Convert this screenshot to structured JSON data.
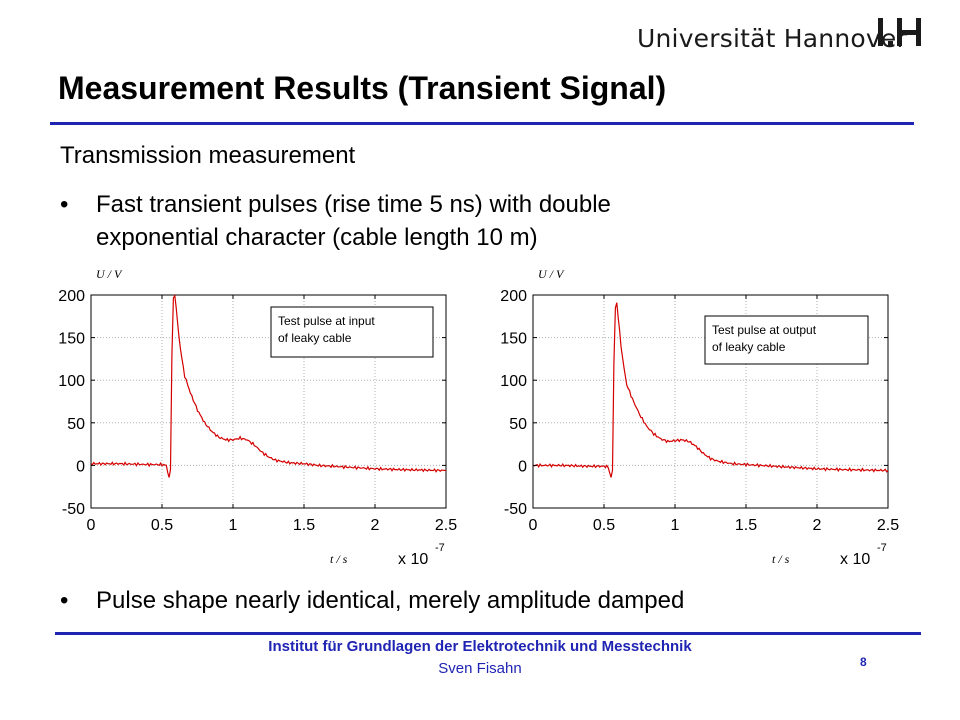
{
  "header": {
    "university": "Universität Hannover",
    "logo_text": "I.H"
  },
  "slide": {
    "title": "Measurement Results (Transient Signal)",
    "subtitle": "Transmission measurement",
    "bullet1_line1": "Fast transient pulses (rise time 5 ns) with double",
    "bullet1_line2": "exponential character (cable length 10 m)",
    "bullet2": "Pulse shape nearly identical, merely amplitude damped",
    "bullet_symbol": "•"
  },
  "footer": {
    "institute": "Institut für Grundlagen der Elektrotechnik und Messtechnik",
    "author": "Sven Fisahn",
    "page": "8"
  },
  "colors": {
    "accent": "#1f24b3",
    "trace": "#d40000",
    "grid": "#b0b0b0"
  },
  "chart_data": [
    {
      "type": "line",
      "title": "",
      "legend_text_line1": "Test pulse at input",
      "legend_text_line2": "of leaky cable",
      "ylabel": "U / V",
      "xlabel": "t / s",
      "x_multiplier": "x 10",
      "x_multiplier_exp": "-7",
      "xlim": [
        0,
        2.5
      ],
      "ylim": [
        -50,
        200
      ],
      "x_ticks": [
        "0",
        "0.5",
        "1",
        "1.5",
        "2",
        "2.5"
      ],
      "y_ticks": [
        "200",
        "150",
        "100",
        "50",
        "0",
        "-50"
      ],
      "grid": true,
      "series": [
        {
          "x": [
            0,
            0.2,
            0.4,
            0.5,
            0.53,
            0.55,
            0.56,
            0.57,
            0.58,
            0.59,
            0.6,
            0.62,
            0.64,
            0.66,
            0.7,
            0.75,
            0.8,
            0.85,
            0.9,
            0.95,
            1.0,
            1.05,
            1.1,
            1.15,
            1.2,
            1.25,
            1.3,
            1.4,
            1.5,
            1.6,
            1.8,
            2.0,
            2.2,
            2.5
          ],
          "y": [
            2,
            2,
            1,
            1,
            0,
            -15,
            -5,
            130,
            195,
            200,
            185,
            150,
            125,
            105,
            85,
            65,
            50,
            40,
            33,
            30,
            30,
            32,
            30,
            24,
            16,
            10,
            6,
            3,
            2,
            0,
            -2,
            -4,
            -5,
            -6
          ]
        }
      ]
    },
    {
      "type": "line",
      "title": "",
      "legend_text_line1": "Test pulse at output",
      "legend_text_line2": "of leaky cable",
      "ylabel": "U / V",
      "xlabel": "t / s",
      "x_multiplier": "x 10",
      "x_multiplier_exp": "-7",
      "xlim": [
        0,
        2.5
      ],
      "ylim": [
        -50,
        200
      ],
      "x_ticks": [
        "0",
        "0.5",
        "1",
        "1.5",
        "2",
        "2.5"
      ],
      "y_ticks": [
        "200",
        "150",
        "100",
        "50",
        "0",
        "-50"
      ],
      "grid": true,
      "series": [
        {
          "x": [
            0,
            0.2,
            0.4,
            0.5,
            0.53,
            0.55,
            0.56,
            0.57,
            0.58,
            0.59,
            0.6,
            0.62,
            0.64,
            0.66,
            0.7,
            0.75,
            0.8,
            0.85,
            0.9,
            0.95,
            1.0,
            1.05,
            1.1,
            1.15,
            1.2,
            1.25,
            1.3,
            1.4,
            1.5,
            1.6,
            1.8,
            2.0,
            2.2,
            2.5
          ],
          "y": [
            0,
            0,
            -1,
            -1,
            -2,
            -15,
            -5,
            120,
            185,
            190,
            175,
            140,
            115,
            95,
            78,
            60,
            46,
            37,
            31,
            28,
            29,
            30,
            28,
            22,
            14,
            8,
            5,
            2,
            1,
            0,
            -2,
            -4,
            -5,
            -6
          ]
        }
      ]
    }
  ]
}
